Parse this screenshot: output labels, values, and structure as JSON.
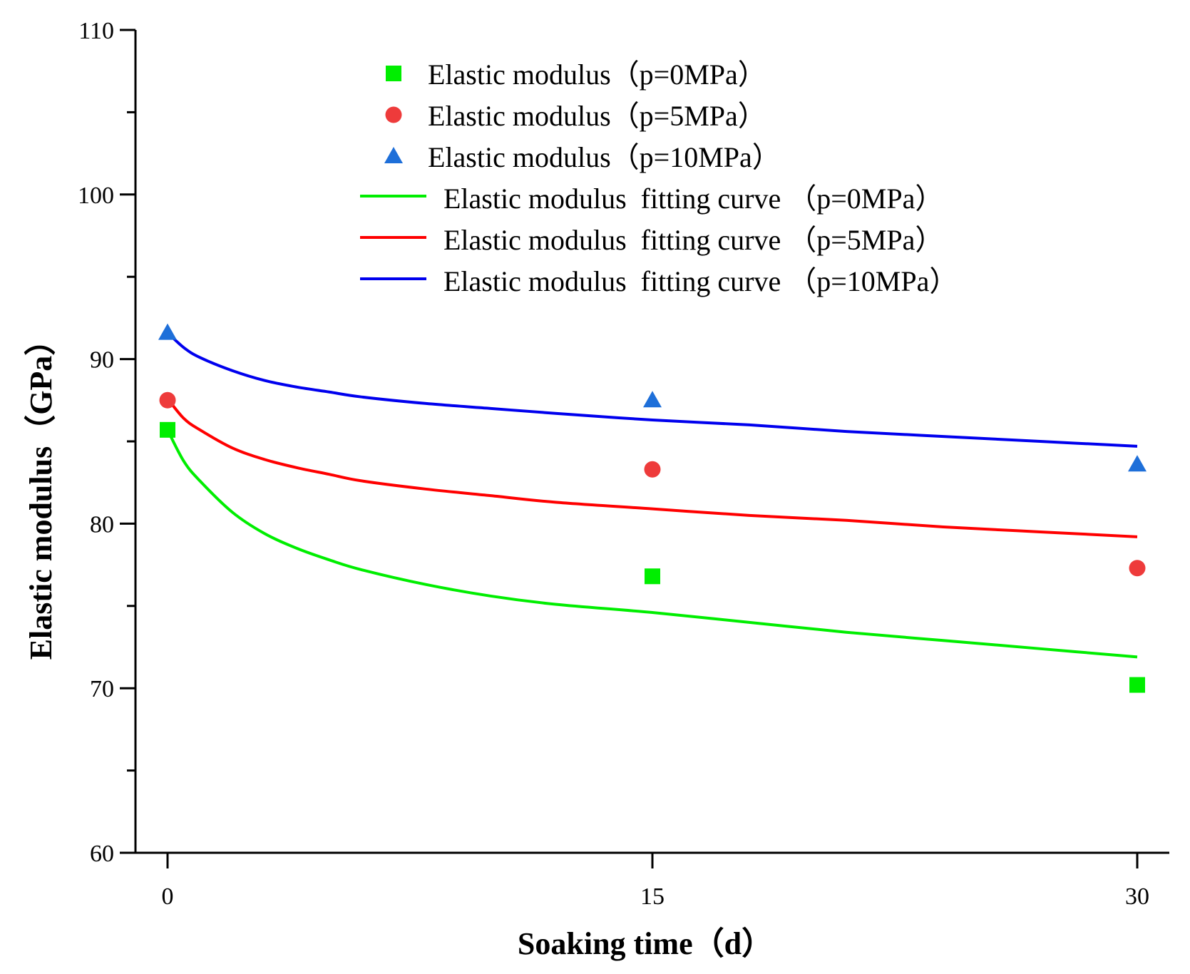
{
  "chart_data": {
    "type": "scatter",
    "title": "",
    "xlabel": "Soaking time（d）",
    "ylabel": "Elastic modulus（GPa）",
    "xlim": [
      -1,
      31
    ],
    "ylim": [
      60,
      110
    ],
    "x_ticks": [
      0,
      15,
      30
    ],
    "x_tick_labels": [
      "0",
      "15",
      "30"
    ],
    "y_ticks": [
      60,
      70,
      80,
      90,
      100,
      110
    ],
    "y_tick_labels": [
      "60",
      "70",
      "80",
      "90",
      "100",
      "110"
    ],
    "y_minor_step": 5,
    "grid": false,
    "legend_position": "top-center",
    "series": [
      {
        "name": "Elastic modulus（p=0MPa）",
        "kind": "points",
        "marker": "square",
        "color": "#00ee00",
        "x": [
          0,
          15,
          30
        ],
        "y": [
          85.7,
          76.8,
          70.2
        ]
      },
      {
        "name": "Elastic modulus（p=5MPa）",
        "kind": "points",
        "marker": "circle",
        "color": "#ee3b3b",
        "x": [
          0,
          15,
          30
        ],
        "y": [
          87.5,
          83.3,
          77.3
        ]
      },
      {
        "name": "Elastic modulus（p=10MPa）",
        "kind": "points",
        "marker": "triangle",
        "color": "#1e6fd9",
        "x": [
          0,
          15,
          30
        ],
        "y": [
          91.6,
          87.5,
          83.6
        ]
      },
      {
        "name": "Elastic modulus  fitting curve （p=0MPa）",
        "kind": "line",
        "color": "#00ee00",
        "x": [
          0,
          0.5,
          1,
          2,
          3,
          4,
          5,
          6,
          8,
          10,
          12,
          15,
          18,
          21,
          24,
          27,
          30
        ],
        "y": [
          85.7,
          83.8,
          82.6,
          80.7,
          79.4,
          78.5,
          77.8,
          77.2,
          76.3,
          75.6,
          75.1,
          74.6,
          74.0,
          73.4,
          72.9,
          72.4,
          71.9
        ]
      },
      {
        "name": "Elastic modulus  fitting curve （p=5MPa）",
        "kind": "line",
        "color": "#ff0000",
        "x": [
          0,
          0.5,
          1,
          2,
          3,
          4,
          5,
          6,
          8,
          10,
          12,
          15,
          18,
          21,
          24,
          27,
          30
        ],
        "y": [
          87.6,
          86.4,
          85.7,
          84.6,
          83.9,
          83.4,
          83.0,
          82.6,
          82.1,
          81.7,
          81.3,
          80.9,
          80.5,
          80.2,
          79.8,
          79.5,
          79.2
        ]
      },
      {
        "name": "Elastic modulus  fitting curve （p=10MPa）",
        "kind": "line",
        "color": "#0000ee",
        "x": [
          0,
          0.5,
          1,
          2,
          3,
          4,
          5,
          6,
          8,
          10,
          12,
          15,
          18,
          21,
          24,
          27,
          30
        ],
        "y": [
          91.6,
          90.7,
          90.1,
          89.3,
          88.7,
          88.3,
          88.0,
          87.7,
          87.3,
          87.0,
          86.7,
          86.3,
          86.0,
          85.6,
          85.3,
          85.0,
          84.7
        ]
      }
    ]
  }
}
